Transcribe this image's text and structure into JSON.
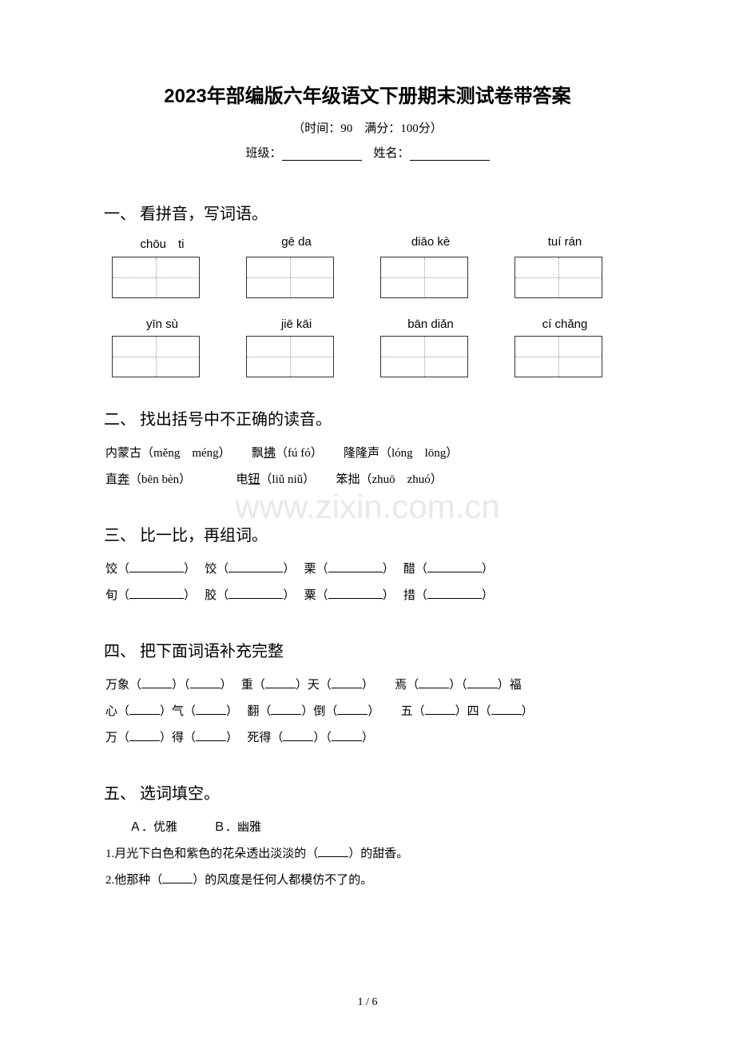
{
  "title": "2023年部编版六年级语文下册期末测试卷带答案",
  "subtitle": "（时间：90　满分：100分）",
  "infoLine": {
    "classLabel": "班级：",
    "nameLabel": "姓名："
  },
  "watermark": "www.zixin.com.cn",
  "pageNum": "1 / 6",
  "sections": {
    "s1": {
      "header": "一、 看拼音，写词语。",
      "row1": [
        "chōu　ti",
        "gē da",
        "diāo kè",
        "tuí rán"
      ],
      "row2": [
        "yīn sù",
        "jiē kāi",
        "bān diǎn",
        "cí chǎng"
      ]
    },
    "s2": {
      "header": "二、 找出括号中不正确的读音。",
      "line1_a": "内蒙古（měng　méng）",
      "line1_b": "飘",
      "line1_b_u": "拂",
      "line1_b_p": "（fú fó）",
      "line1_c": "隆隆声（lóng　lōng）",
      "line2_a_pre": "直",
      "line2_a_u": "奔",
      "line2_a_p": "（bēn bèn）",
      "line2_b_pre": "电",
      "line2_b_u": "钮",
      "line2_b_p": "（liǔ niǔ）",
      "line2_c": "笨拙（zhuō　zhuó）"
    },
    "s3": {
      "header": "三、 比一比，再组词。",
      "items": [
        [
          "饺（",
          "）",
          "饺（",
          "）",
          "栗（",
          "）",
          "醋（",
          "）"
        ],
        [
          "旬（",
          "）",
          "胶（",
          "）",
          "粟（",
          "）",
          "措（",
          "）"
        ]
      ]
    },
    "s4": {
      "header": "四、 把下面词语补充完整",
      "line1": [
        "万象（",
        "）（",
        "）",
        "重（",
        "）天（",
        "）",
        "焉（",
        "）（",
        "）福"
      ],
      "line2": [
        "心（",
        "）气（",
        "）",
        "翻（",
        "）倒（",
        "）",
        "五（",
        "）四（",
        "）"
      ],
      "line3": [
        "万（",
        "）得（",
        "）",
        "死得（",
        "）（",
        "）"
      ]
    },
    "s5": {
      "header": "五、 选词填空。",
      "options": "　　Ａ．优雅　　　Ｂ．幽雅",
      "q1_pre": "1.月光下白色和紫色的花朵透出淡淡的（",
      "q1_post": "）的甜香。",
      "q2_pre": "2.他那种（",
      "q2_post": "）的风度是任何人都模仿不了的。"
    }
  }
}
